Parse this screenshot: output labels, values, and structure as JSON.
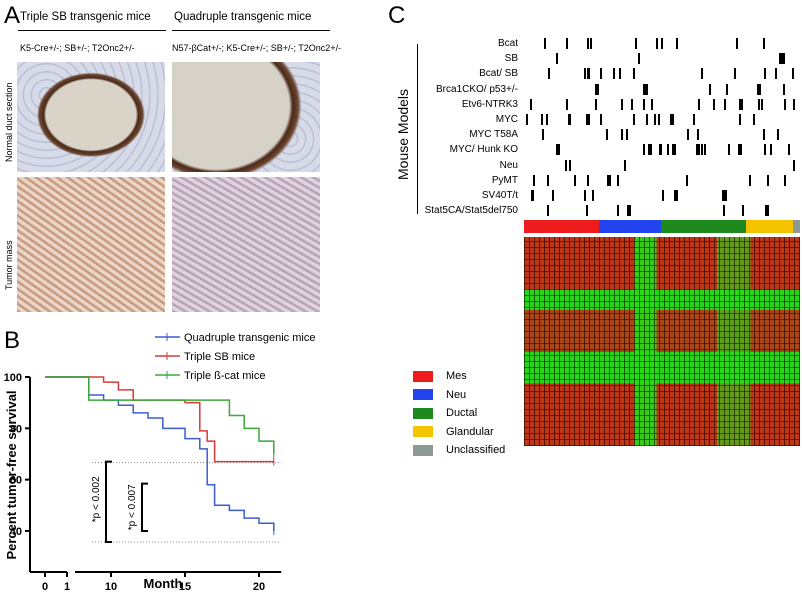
{
  "panel_a": {
    "label": "A",
    "columns": [
      {
        "title": "Triple SB transgenic mice",
        "genotype": "K5-Cre+/-; SB+/-; T2Onc2+/-"
      },
      {
        "title": "Quadruple transgenic mice",
        "genotype": "N57-βCat+/-; K5-Cre+/-; SB+/-; T2Onc2+/-"
      }
    ],
    "rows": [
      "Normal duct section",
      "Tumor mass"
    ]
  },
  "chart_data": {
    "type": "line",
    "label": "B",
    "xlabel": "Month",
    "ylabel": "Percent tumor-free survival",
    "x": [
      0,
      8.5,
      9.5,
      10.5,
      11.5,
      12.5,
      13.5,
      15,
      16,
      16.5,
      17,
      18,
      19,
      20,
      21
    ],
    "series": [
      {
        "name": "Quadruple transgenic mice",
        "color": "#3a5fcd",
        "values": [
          100,
          93,
          91,
          89,
          86,
          84,
          80,
          76,
          72,
          58,
          50,
          48,
          45,
          43,
          40
        ]
      },
      {
        "name": "Triple SB mice",
        "color": "#d93a3a",
        "values": [
          100,
          100,
          98,
          95,
          91,
          91,
          91,
          90,
          79,
          75,
          67,
          67,
          67,
          67,
          67
        ]
      },
      {
        "name": "Triple ß-cat mice",
        "color": "#3aa83a",
        "values": [
          100,
          91,
          91,
          91,
          91,
          91,
          91,
          91,
          91,
          91,
          91,
          85,
          80,
          75,
          70
        ]
      }
    ],
    "xlim": [
      0,
      21.5
    ],
    "xticks": [
      0,
      1,
      10,
      15,
      20
    ],
    "ylim": [
      24,
      100
    ],
    "yticks": [
      100,
      80,
      60,
      40
    ],
    "annotations": [
      "*p < 0.002",
      "*p < 0.007"
    ]
  },
  "panel_c": {
    "label": "C",
    "group_label": "Mouse Models",
    "models": [
      "Bcat",
      "SB",
      "Bcat/ SB",
      "Brca1CKO/ p53+/-",
      "Etv6-NTRK3",
      "MYC",
      "MYC T58A",
      "MYC/ Hunk KO",
      "Neu",
      "PyMT",
      "SV40T/t",
      "Stat5CA/Stat5del750"
    ],
    "subtypes": [
      {
        "name": "Mes",
        "color": "#ee1c1c"
      },
      {
        "name": "Neu",
        "color": "#2244ee"
      },
      {
        "name": "Ductal",
        "color": "#1e8a1e"
      },
      {
        "name": "Glandular",
        "color": "#f5c400"
      },
      {
        "name": "Unclassified",
        "color": "#8c9a96"
      }
    ]
  }
}
